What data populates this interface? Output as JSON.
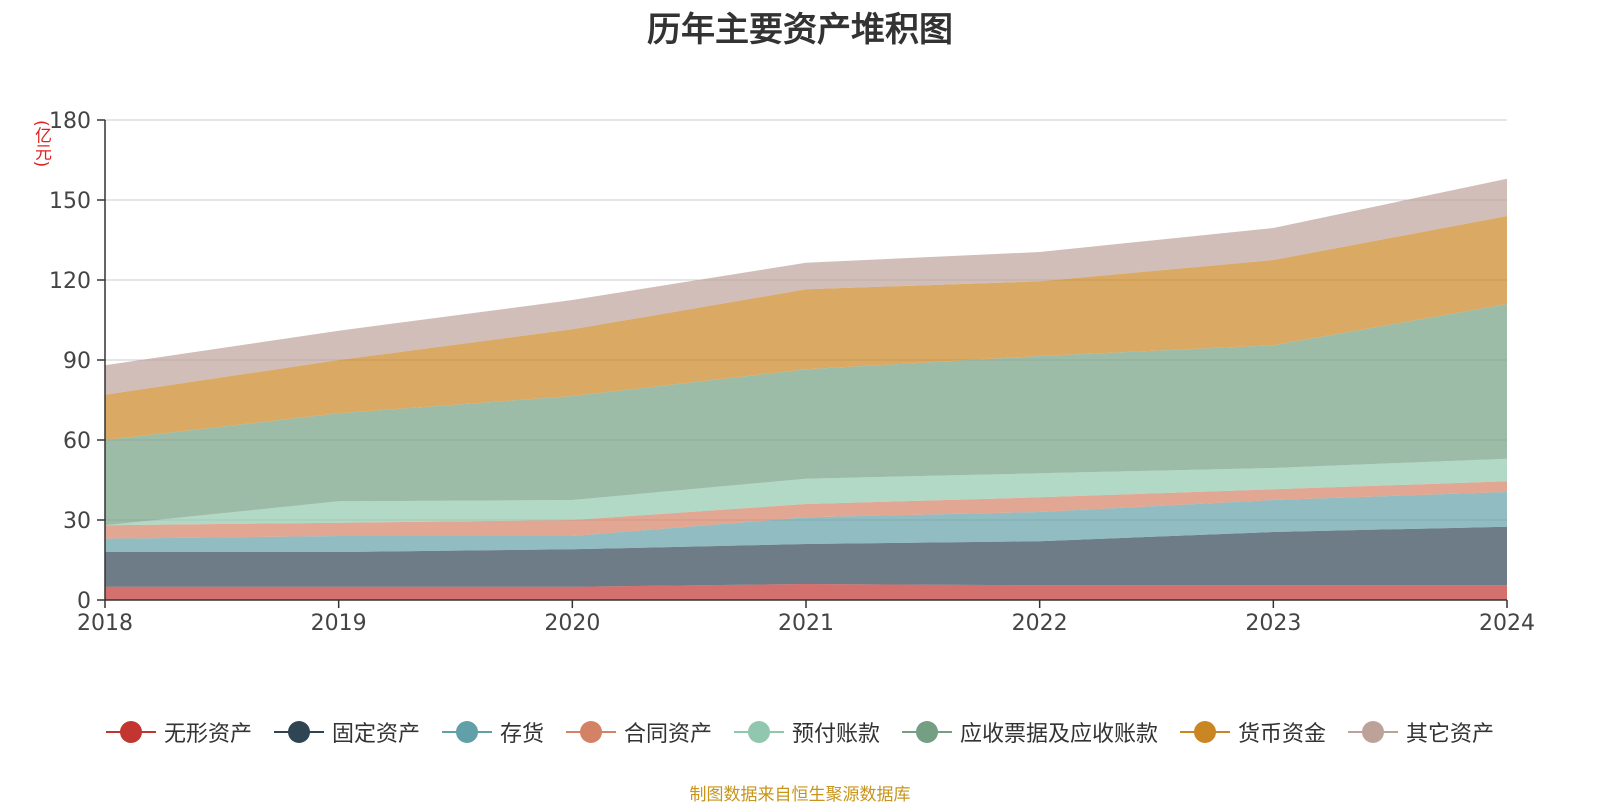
{
  "chart_data": {
    "type": "area",
    "stacked": true,
    "title": "历年主要资产堆积图",
    "unit": "(亿元)",
    "x": [
      "2018",
      "2019",
      "2020",
      "2021",
      "2022",
      "2023",
      "2024"
    ],
    "ylim": [
      0,
      180
    ],
    "yticks": [
      0,
      30,
      60,
      90,
      120,
      150,
      180
    ],
    "grid": true,
    "legend_position": "bottom",
    "series": [
      {
        "name": "无形资产",
        "color": "#c23531",
        "values": [
          5,
          5,
          5,
          6,
          5.5,
          5.5,
          5.5
        ]
      },
      {
        "name": "固定资产",
        "color": "#2f4554",
        "values": [
          13,
          13,
          14,
          15,
          16.5,
          20,
          22
        ]
      },
      {
        "name": "存货",
        "color": "#61a0a8",
        "values": [
          5,
          6,
          5,
          10,
          11,
          12,
          13
        ]
      },
      {
        "name": "合同资产",
        "color": "#d48265",
        "values": [
          5,
          5,
          6,
          5,
          5.5,
          4,
          4
        ]
      },
      {
        "name": "预付账款",
        "color": "#91c7ae",
        "values": [
          0,
          8,
          7.5,
          9.5,
          9,
          8,
          8.5
        ]
      },
      {
        "name": "应收票据及应收账款",
        "color": "#749f83",
        "values": [
          32,
          33,
          39,
          41,
          44,
          46,
          58
        ]
      },
      {
        "name": "货币资金",
        "color": "#ca8622",
        "values": [
          17,
          20,
          25,
          30,
          28,
          32,
          33
        ]
      },
      {
        "name": "其它资产",
        "color": "#bda29a",
        "values": [
          11,
          11,
          11,
          10,
          11,
          12,
          14
        ]
      }
    ]
  },
  "source_note": "制图数据来自恒生聚源数据库"
}
